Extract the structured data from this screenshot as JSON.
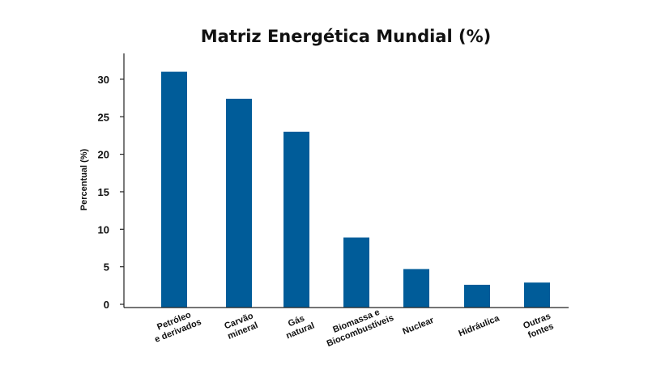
{
  "chart_data": {
    "type": "bar",
    "title": "Matriz Energética Mundial (%)",
    "ylabel": "Percentual (%)",
    "xlabel": "",
    "ylim": [
      0,
      33
    ],
    "yticks": [
      0,
      5,
      10,
      15,
      20,
      25,
      30
    ],
    "categories": [
      [
        "Petróleo",
        "e derivados"
      ],
      [
        "Carvão",
        "mineral"
      ],
      [
        "Gás",
        "natural"
      ],
      [
        "Biomassa e",
        "Biocombustíveis"
      ],
      [
        "Nuclear"
      ],
      [
        "Hidráulica"
      ],
      [
        "Outras",
        "fontes"
      ]
    ],
    "values": [
      31.0,
      27.4,
      23.0,
      8.9,
      4.7,
      2.6,
      2.9
    ],
    "bar_color": "#005c99",
    "grid": false,
    "legend": "none"
  }
}
